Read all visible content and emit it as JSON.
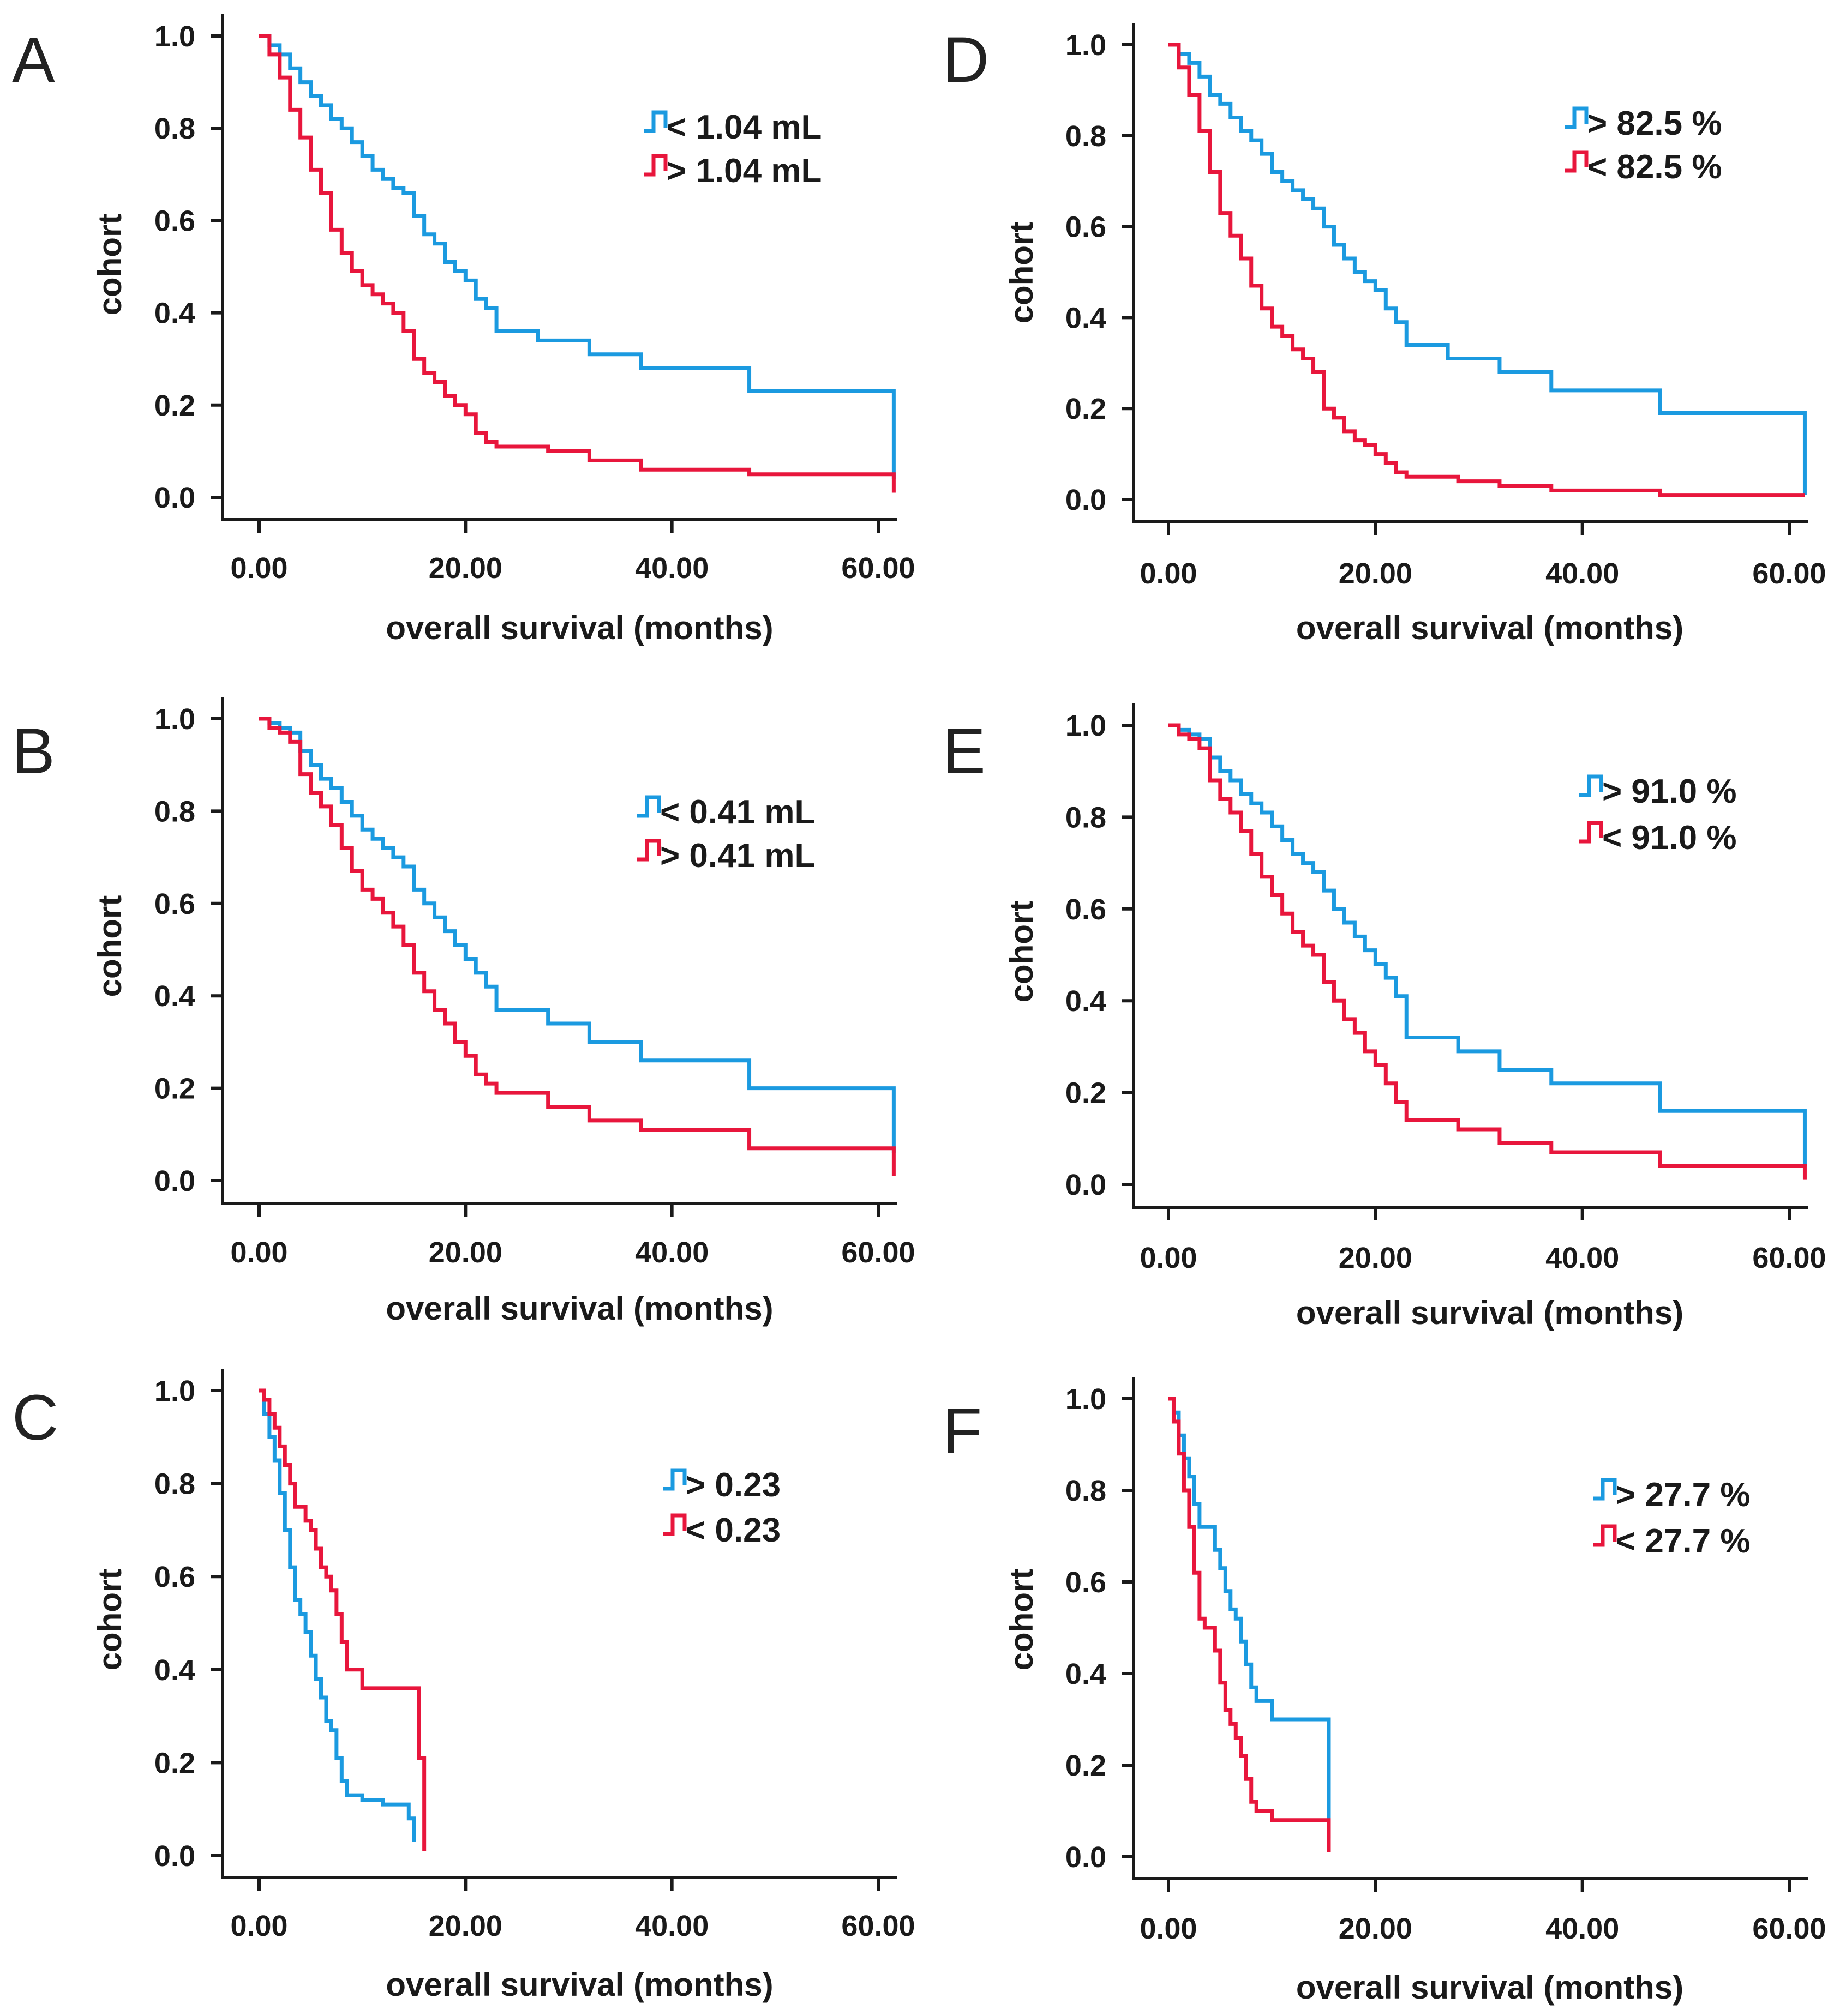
{
  "colors": {
    "blue": "#1B9AE0",
    "red": "#E8163C",
    "axis": "#1a1a1a"
  },
  "chart_data": [
    {
      "type": "line",
      "panel": "A",
      "xlabel": "overall survival (months)",
      "ylabel": "cohort",
      "xlim": [
        0,
        62
      ],
      "ylim": [
        0,
        1.0
      ],
      "xticks": [
        "0.00",
        "20.00",
        "40.00",
        "60.00"
      ],
      "yticks": [
        "0.0",
        "0.2",
        "0.4",
        "0.6",
        "0.8",
        "1.0"
      ],
      "legend_position": "top-right",
      "series": [
        {
          "name": "< 1.04 mL",
          "color": "blue",
          "x": [
            0,
            1,
            2,
            3,
            4,
            5,
            6,
            7,
            8,
            9,
            10,
            11,
            12,
            13,
            14,
            15,
            16,
            17,
            18,
            19,
            20,
            21,
            22,
            23,
            27,
            32,
            37,
            47.5,
            61.5,
            61.5
          ],
          "y": [
            1.0,
            0.98,
            0.96,
            0.93,
            0.9,
            0.87,
            0.85,
            0.82,
            0.8,
            0.77,
            0.74,
            0.71,
            0.69,
            0.67,
            0.66,
            0.61,
            0.57,
            0.55,
            0.51,
            0.49,
            0.47,
            0.43,
            0.41,
            0.36,
            0.34,
            0.31,
            0.28,
            0.23,
            0.22,
            0.04
          ]
        },
        {
          "name": "> 1.04 mL",
          "color": "red",
          "x": [
            0,
            1,
            2,
            3,
            4,
            5,
            6,
            7,
            8,
            9,
            10,
            11,
            12,
            13,
            14,
            15,
            16,
            17,
            18,
            19,
            20,
            21,
            22,
            23,
            28,
            32,
            37,
            47.5,
            61.5,
            61.5
          ],
          "y": [
            1.0,
            0.96,
            0.91,
            0.84,
            0.78,
            0.71,
            0.66,
            0.58,
            0.53,
            0.49,
            0.46,
            0.44,
            0.42,
            0.4,
            0.36,
            0.3,
            0.27,
            0.25,
            0.22,
            0.2,
            0.18,
            0.14,
            0.12,
            0.11,
            0.1,
            0.08,
            0.06,
            0.05,
            0.04,
            0.01
          ]
        }
      ]
    },
    {
      "type": "line",
      "panel": "B",
      "xlabel": "overall survival (months)",
      "ylabel": "cohort",
      "xlim": [
        0,
        62
      ],
      "ylim": [
        0,
        1.0
      ],
      "xticks": [
        "0.00",
        "20.00",
        "40.00",
        "60.00"
      ],
      "yticks": [
        "0.0",
        "0.2",
        "0.4",
        "0.6",
        "0.8",
        "1.0"
      ],
      "legend_position": "top-right",
      "series": [
        {
          "name": "< 0.41 mL",
          "color": "blue",
          "x": [
            0,
            1,
            2,
            3,
            4,
            5,
            6,
            7,
            8,
            9,
            10,
            11,
            12,
            13,
            14,
            15,
            16,
            17,
            18,
            19,
            20,
            21,
            22,
            23,
            28,
            32,
            37,
            47.5,
            61.5,
            61.5
          ],
          "y": [
            1.0,
            0.99,
            0.98,
            0.97,
            0.93,
            0.9,
            0.87,
            0.85,
            0.82,
            0.79,
            0.76,
            0.74,
            0.72,
            0.7,
            0.68,
            0.63,
            0.6,
            0.57,
            0.54,
            0.51,
            0.48,
            0.45,
            0.42,
            0.37,
            0.34,
            0.3,
            0.26,
            0.2,
            0.2,
            0.06
          ]
        },
        {
          "name": "> 0.41 mL",
          "color": "red",
          "x": [
            0,
            1,
            2,
            3,
            4,
            5,
            6,
            7,
            8,
            9,
            10,
            11,
            12,
            13,
            14,
            15,
            16,
            17,
            18,
            19,
            20,
            21,
            22,
            23,
            28,
            32,
            37,
            47.5,
            61.5,
            61.5
          ],
          "y": [
            1.0,
            0.98,
            0.97,
            0.95,
            0.88,
            0.84,
            0.81,
            0.77,
            0.72,
            0.67,
            0.63,
            0.61,
            0.58,
            0.55,
            0.51,
            0.45,
            0.41,
            0.37,
            0.34,
            0.3,
            0.27,
            0.23,
            0.21,
            0.19,
            0.16,
            0.13,
            0.11,
            0.07,
            0.07,
            0.01
          ]
        }
      ]
    },
    {
      "type": "line",
      "panel": "C",
      "xlabel": "overall survival (months)",
      "ylabel": "cohort",
      "xlim": [
        0,
        62
      ],
      "ylim": [
        0,
        1.0
      ],
      "xticks": [
        "0.00",
        "20.00",
        "40.00",
        "60.00"
      ],
      "yticks": [
        "0.0",
        "0.2",
        "0.4",
        "0.6",
        "0.8",
        "1.0"
      ],
      "legend_position": "top-right",
      "series": [
        {
          "name": "> 0.23",
          "color": "blue",
          "x": [
            0,
            0.5,
            1,
            1.5,
            2,
            2.5,
            3,
            3.5,
            4,
            4.5,
            5,
            5.5,
            6,
            6.5,
            7,
            7.5,
            8,
            8.5,
            10,
            12,
            14.5,
            15
          ],
          "y": [
            1.0,
            0.95,
            0.9,
            0.85,
            0.78,
            0.7,
            0.62,
            0.55,
            0.52,
            0.48,
            0.43,
            0.38,
            0.34,
            0.29,
            0.27,
            0.21,
            0.16,
            0.13,
            0.12,
            0.11,
            0.08,
            0.03
          ]
        },
        {
          "name": "< 0.23",
          "color": "red",
          "x": [
            0,
            0.5,
            1,
            1.5,
            2,
            2.5,
            3,
            3.5,
            4,
            4.5,
            5,
            5.5,
            6,
            6.5,
            7,
            7.5,
            8,
            8.5,
            10,
            15,
            15.5,
            16
          ],
          "y": [
            1.0,
            0.98,
            0.95,
            0.92,
            0.88,
            0.84,
            0.8,
            0.75,
            0.75,
            0.72,
            0.7,
            0.66,
            0.62,
            0.6,
            0.57,
            0.52,
            0.46,
            0.4,
            0.36,
            0.36,
            0.21,
            0.01
          ]
        }
      ]
    },
    {
      "type": "line",
      "panel": "D",
      "xlabel": "overall survival (months)",
      "ylabel": "cohort",
      "xlim": [
        0,
        62
      ],
      "ylim": [
        0,
        1.0
      ],
      "xticks": [
        "0.00",
        "20.00",
        "40.00",
        "60.00"
      ],
      "yticks": [
        "0.0",
        "0.2",
        "0.4",
        "0.6",
        "0.8",
        "1.0"
      ],
      "legend_position": "top-right",
      "series": [
        {
          "name": "> 82.5 %",
          "color": "blue",
          "x": [
            0,
            1,
            2,
            3,
            4,
            5,
            6,
            7,
            8,
            9,
            10,
            11,
            12,
            13,
            14,
            15,
            16,
            17,
            18,
            19,
            20,
            21,
            22,
            23,
            27,
            32,
            37,
            47.5,
            61.5,
            61.5
          ],
          "y": [
            1.0,
            0.98,
            0.96,
            0.93,
            0.89,
            0.87,
            0.84,
            0.81,
            0.79,
            0.76,
            0.72,
            0.7,
            0.68,
            0.66,
            0.64,
            0.6,
            0.56,
            0.53,
            0.5,
            0.48,
            0.46,
            0.42,
            0.39,
            0.34,
            0.31,
            0.28,
            0.24,
            0.19,
            0.19,
            0.01
          ]
        },
        {
          "name": "< 82.5 %",
          "color": "red",
          "x": [
            0,
            1,
            2,
            3,
            4,
            5,
            6,
            7,
            8,
            9,
            10,
            11,
            12,
            13,
            14,
            15,
            16,
            17,
            18,
            19,
            20,
            21,
            22,
            23,
            28,
            32,
            37,
            47.5,
            61.5,
            61.5
          ],
          "y": [
            1.0,
            0.95,
            0.89,
            0.81,
            0.72,
            0.63,
            0.58,
            0.53,
            0.47,
            0.42,
            0.38,
            0.36,
            0.33,
            0.31,
            0.28,
            0.2,
            0.18,
            0.15,
            0.13,
            0.12,
            0.1,
            0.08,
            0.06,
            0.05,
            0.04,
            0.03,
            0.02,
            0.01,
            0.01,
            0.01
          ]
        }
      ]
    },
    {
      "type": "line",
      "panel": "E",
      "xlabel": "overall survival (months)",
      "ylabel": "cohort",
      "xlim": [
        0,
        62
      ],
      "ylim": [
        0,
        1.0
      ],
      "xticks": [
        "0.00",
        "20.00",
        "40.00",
        "60.00"
      ],
      "yticks": [
        "0.0",
        "0.2",
        "0.4",
        "0.6",
        "0.8",
        "1.0"
      ],
      "legend_position": "top-right",
      "series": [
        {
          "name": "> 91.0 %",
          "color": "blue",
          "x": [
            0,
            1,
            2,
            3,
            4,
            5,
            6,
            7,
            8,
            9,
            10,
            11,
            12,
            13,
            14,
            15,
            16,
            17,
            18,
            19,
            20,
            21,
            22,
            23,
            28,
            32,
            37,
            47.5,
            61.5,
            61.5
          ],
          "y": [
            1.0,
            0.99,
            0.98,
            0.97,
            0.93,
            0.9,
            0.88,
            0.85,
            0.83,
            0.81,
            0.78,
            0.75,
            0.72,
            0.7,
            0.68,
            0.64,
            0.6,
            0.57,
            0.54,
            0.51,
            0.48,
            0.45,
            0.41,
            0.32,
            0.29,
            0.25,
            0.22,
            0.16,
            0.16,
            0.04
          ]
        },
        {
          "name": "< 91.0 %",
          "color": "red",
          "x": [
            0,
            1,
            2,
            3,
            4,
            5,
            6,
            7,
            8,
            9,
            10,
            11,
            12,
            13,
            14,
            15,
            16,
            17,
            18,
            19,
            20,
            21,
            22,
            23,
            28,
            32,
            37,
            47.5,
            61.5,
            61.5
          ],
          "y": [
            1.0,
            0.98,
            0.97,
            0.95,
            0.88,
            0.84,
            0.81,
            0.77,
            0.72,
            0.67,
            0.63,
            0.59,
            0.55,
            0.52,
            0.5,
            0.44,
            0.4,
            0.36,
            0.33,
            0.29,
            0.26,
            0.22,
            0.18,
            0.14,
            0.12,
            0.09,
            0.07,
            0.04,
            0.04,
            0.01
          ]
        }
      ]
    },
    {
      "type": "line",
      "panel": "F",
      "xlabel": "overall survival (months)",
      "ylabel": "cohort",
      "xlim": [
        0,
        62
      ],
      "ylim": [
        0,
        1.0
      ],
      "xticks": [
        "0.00",
        "20.00",
        "40.00",
        "60.00"
      ],
      "yticks": [
        "0.0",
        "0.2",
        "0.4",
        "0.6",
        "0.8",
        "1.0"
      ],
      "legend_position": "top-right",
      "series": [
        {
          "name": "> 27.7 %",
          "color": "blue",
          "x": [
            0,
            0.5,
            1,
            1.5,
            2,
            2.5,
            3,
            3.5,
            4,
            4.5,
            5,
            5.5,
            6,
            6.5,
            7,
            7.5,
            8,
            8.5,
            10,
            15,
            15.5,
            15.5
          ],
          "y": [
            1.0,
            0.97,
            0.92,
            0.87,
            0.83,
            0.77,
            0.72,
            0.72,
            0.72,
            0.67,
            0.63,
            0.58,
            0.54,
            0.52,
            0.47,
            0.42,
            0.37,
            0.34,
            0.3,
            0.3,
            0.23,
            0.04
          ]
        },
        {
          "name": "< 27.7 %",
          "color": "red",
          "x": [
            0,
            0.5,
            1,
            1.5,
            2,
            2.5,
            3,
            3.5,
            4,
            4.5,
            5,
            5.5,
            6,
            6.5,
            7,
            7.5,
            8,
            8.5,
            10,
            15,
            15.5,
            15.5
          ],
          "y": [
            1.0,
            0.95,
            0.88,
            0.8,
            0.72,
            0.62,
            0.52,
            0.5,
            0.5,
            0.45,
            0.38,
            0.32,
            0.29,
            0.26,
            0.22,
            0.17,
            0.12,
            0.1,
            0.08,
            0.08,
            0.06,
            0.01
          ]
        }
      ]
    }
  ]
}
